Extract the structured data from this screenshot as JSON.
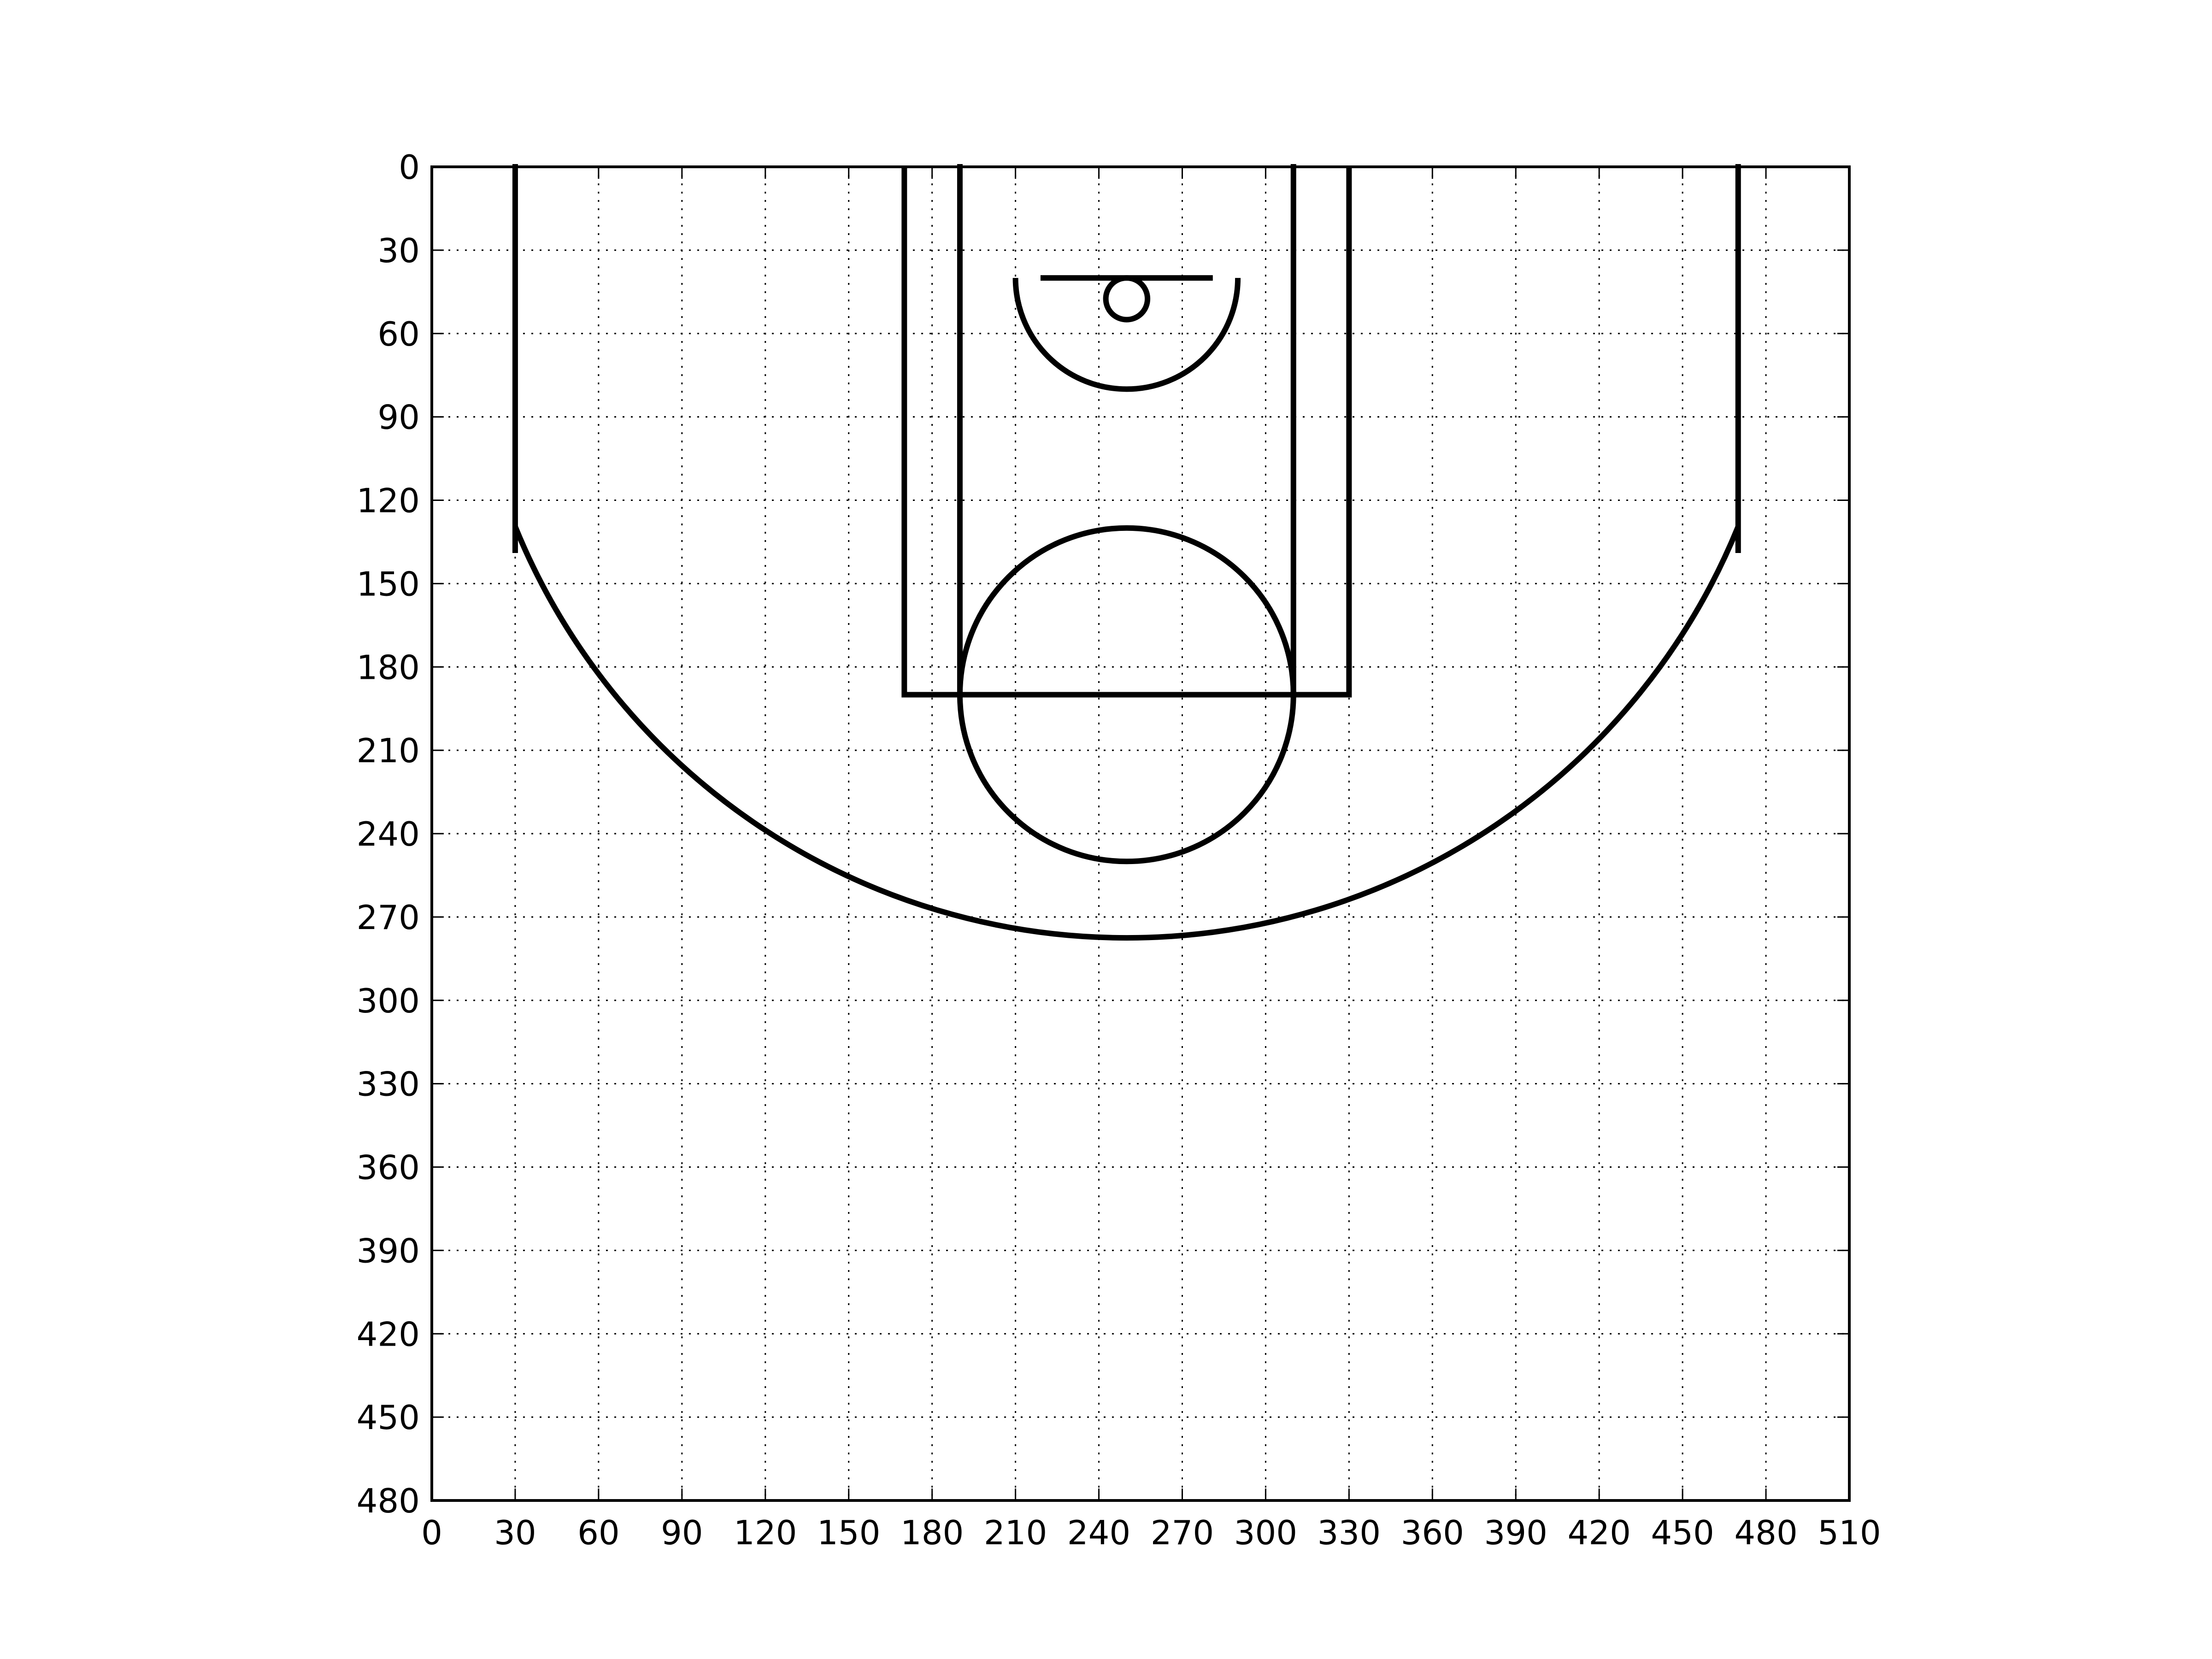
{
  "chart_data": {
    "type": "diagram",
    "title": "",
    "xlabel": "",
    "ylabel": "",
    "xlim": [
      0,
      510
    ],
    "ylim": [
      480,
      0
    ],
    "y_axis_inverted": true,
    "grid": true,
    "grid_style": "dotted",
    "x_ticks": [
      0,
      30,
      60,
      90,
      120,
      150,
      180,
      210,
      240,
      270,
      300,
      330,
      360,
      390,
      420,
      450,
      480,
      510
    ],
    "y_ticks": [
      0,
      30,
      60,
      90,
      120,
      150,
      180,
      210,
      240,
      270,
      300,
      330,
      360,
      390,
      420,
      450,
      480
    ],
    "x_tick_labels": [
      "0",
      "30",
      "60",
      "90",
      "120",
      "150",
      "180",
      "210",
      "240",
      "270",
      "300",
      "330",
      "360",
      "390",
      "420",
      "450",
      "480",
      "510"
    ],
    "y_tick_labels": [
      "0",
      "30",
      "60",
      "90",
      "120",
      "150",
      "180",
      "210",
      "240",
      "270",
      "300",
      "330",
      "360",
      "390",
      "420",
      "450",
      "480"
    ],
    "court_lines": {
      "color": "#000000",
      "corner_three_left": {
        "x": 30,
        "y1": 0,
        "y2": 138
      },
      "corner_three_right": {
        "x": 470,
        "y1": 0,
        "y2": 138
      },
      "three_point_arc": {
        "cx": 250,
        "cy": 40,
        "r": 237.5
      },
      "outer_paint": {
        "x1": 170,
        "x2": 330,
        "y1": 0,
        "y2": 190
      },
      "inner_paint": {
        "x1": 190,
        "x2": 310,
        "y1": 0,
        "y2": 190
      },
      "free_throw_circle": {
        "cx": 250,
        "cy": 190,
        "r": 60
      },
      "restricted_area": {
        "cx": 250,
        "cy": 40,
        "r": 40
      },
      "backboard": {
        "x1": 220,
        "x2": 280,
        "y": 40
      },
      "hoop": {
        "cx": 250,
        "cy": 47.5,
        "r": 7.5
      }
    }
  }
}
